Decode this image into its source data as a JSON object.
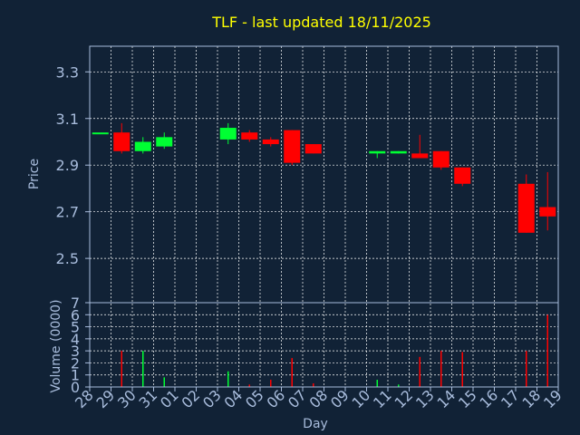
{
  "chart_data": {
    "type": "candlestick",
    "title": "TLF - last updated 18/11/2025",
    "xlabel": "Day",
    "ylabel": "Price",
    "y2label": "Volume (0000)",
    "grid": true,
    "price_ylim": [
      2.31,
      3.41
    ],
    "price_yticks": [
      "2.5",
      "2.7",
      "2.9",
      "3.1",
      "3.3"
    ],
    "volume_ylim": [
      0,
      7
    ],
    "volume_yticks": [
      "0",
      "1",
      "2",
      "3",
      "4",
      "5",
      "6",
      "7"
    ],
    "x_labels": [
      "28",
      "29",
      "30",
      "31",
      "01",
      "02",
      "03",
      "04",
      "05",
      "06",
      "07",
      "08",
      "09",
      "10",
      "11",
      "12",
      "13",
      "14",
      "15",
      "16",
      "17",
      "18",
      "19"
    ],
    "candles": [
      {
        "day": "28",
        "open": 3.04,
        "high": 3.04,
        "low": 3.04,
        "close": 3.04,
        "volume": 0
      },
      {
        "day": "29",
        "open": 3.04,
        "high": 3.08,
        "low": 2.95,
        "close": 2.96,
        "volume": 3.0
      },
      {
        "day": "30",
        "open": 2.96,
        "high": 3.02,
        "low": 2.95,
        "close": 3.0,
        "volume": 3.0
      },
      {
        "day": "31",
        "open": 2.98,
        "high": 3.04,
        "low": 2.97,
        "close": 3.02,
        "volume": 0.8
      },
      {
        "day": "03",
        "open": 3.01,
        "high": 3.08,
        "low": 2.99,
        "close": 3.06,
        "volume": 1.3
      },
      {
        "day": "04",
        "open": 3.04,
        "high": 3.05,
        "low": 3.0,
        "close": 3.01,
        "volume": 0.2
      },
      {
        "day": "05",
        "open": 3.01,
        "high": 3.02,
        "low": 2.98,
        "close": 2.99,
        "volume": 0.6
      },
      {
        "day": "06",
        "open": 3.05,
        "high": 3.05,
        "low": 2.9,
        "close": 2.91,
        "volume": 2.4
      },
      {
        "day": "07",
        "open": 2.99,
        "high": 2.99,
        "low": 2.95,
        "close": 2.95,
        "volume": 0.3
      },
      {
        "day": "10",
        "open": 2.95,
        "high": 2.96,
        "low": 2.93,
        "close": 2.96,
        "volume": 0.6
      },
      {
        "day": "11",
        "open": 2.95,
        "high": 2.96,
        "low": 2.95,
        "close": 2.96,
        "volume": 0.2
      },
      {
        "day": "12",
        "open": 2.95,
        "high": 3.03,
        "low": 2.93,
        "close": 2.93,
        "volume": 2.5
      },
      {
        "day": "13",
        "open": 2.96,
        "high": 2.96,
        "low": 2.88,
        "close": 2.89,
        "volume": 3.0
      },
      {
        "day": "14",
        "open": 2.89,
        "high": 2.89,
        "low": 2.81,
        "close": 2.82,
        "volume": 2.9
      },
      {
        "day": "17",
        "open": 2.82,
        "high": 2.86,
        "low": 2.61,
        "close": 2.61,
        "volume": 3.0
      },
      {
        "day": "18",
        "open": 2.72,
        "high": 2.87,
        "low": 2.62,
        "close": 2.68,
        "volume": 6.0
      }
    ],
    "colors": {
      "background": "#112236",
      "up": "#00ff33",
      "down": "#ff0000",
      "title": "#ffff00",
      "axis_text": "#a8bcdc",
      "grid": "#ffffff",
      "frame": "#a8bcdc"
    }
  }
}
